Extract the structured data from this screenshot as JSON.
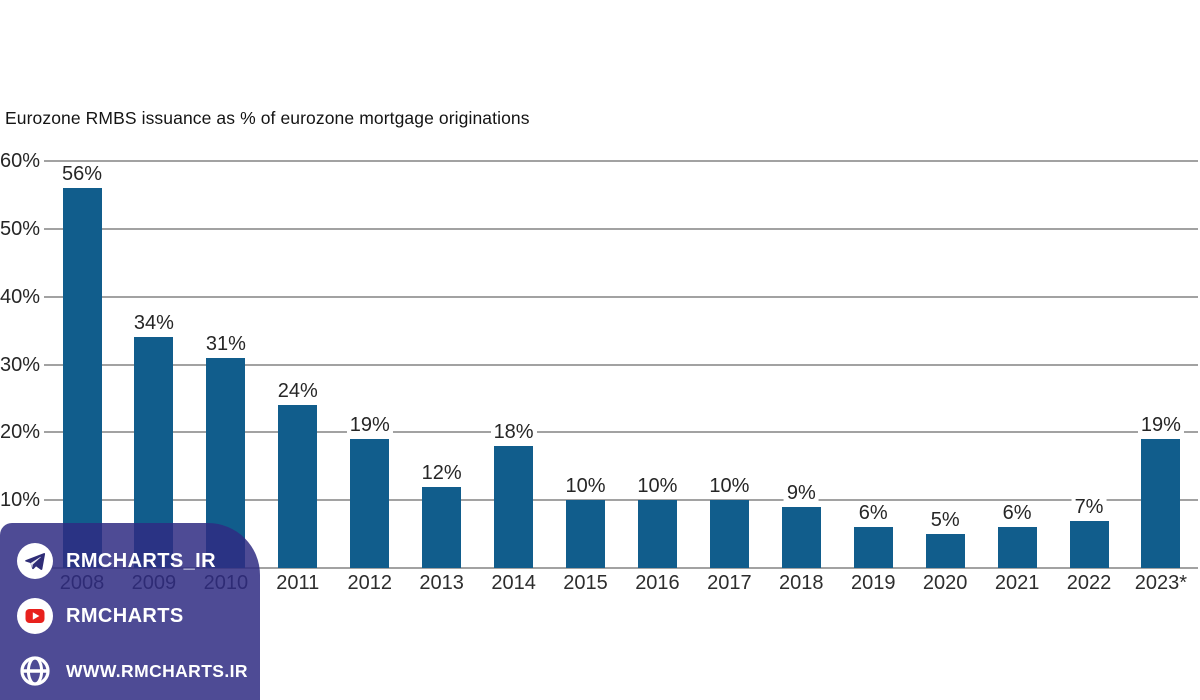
{
  "title": "Eurozone RMBS issuance as % of eurozone mortgage originations",
  "chart_data": {
    "type": "bar",
    "title": "Eurozone RMBS issuance as % of eurozone mortgage originations",
    "categories": [
      "2008",
      "2009",
      "2010",
      "2011",
      "2012",
      "2013",
      "2014",
      "2015",
      "2016",
      "2017",
      "2018",
      "2019",
      "2020",
      "2021",
      "2022",
      "2023*"
    ],
    "values": [
      56,
      34,
      31,
      24,
      19,
      12,
      18,
      10,
      10,
      10,
      9,
      6,
      5,
      6,
      7,
      19
    ],
    "value_labels": [
      "56%",
      "34%",
      "31%",
      "24%",
      "19%",
      "12%",
      "18%",
      "10%",
      "10%",
      "10%",
      "9%",
      "6%",
      "5%",
      "6%",
      "7%",
      "19%"
    ],
    "xlabel": "",
    "ylabel": "",
    "ylim": [
      0,
      60
    ],
    "ytick_values": [
      60,
      50,
      40,
      30,
      20,
      10
    ],
    "ytick_labels": [
      "60%",
      "50%",
      "40%",
      "30%",
      "20%",
      "10%"
    ],
    "grid": true,
    "legend_position": "none"
  },
  "colors": {
    "bar": "#115d8c",
    "grid": "#a2a2a2",
    "axis_text": "#262626",
    "xaxis_text": "#2d2d2d",
    "title_text": "#141414",
    "watermark_bg": "rgba(47,43,130,0.85)",
    "watermark_text": "#ffffff",
    "youtube_red": "#e8211d",
    "telegram_plane": "#2f2d77"
  },
  "watermark": {
    "rows": [
      {
        "icon": "telegram-icon",
        "label": "RMCHARTS_IR"
      },
      {
        "icon": "youtube-icon",
        "label": "RMCHARTS"
      },
      {
        "icon": "globe-icon",
        "label": "WWW.RMCHARTS.IR"
      }
    ]
  }
}
